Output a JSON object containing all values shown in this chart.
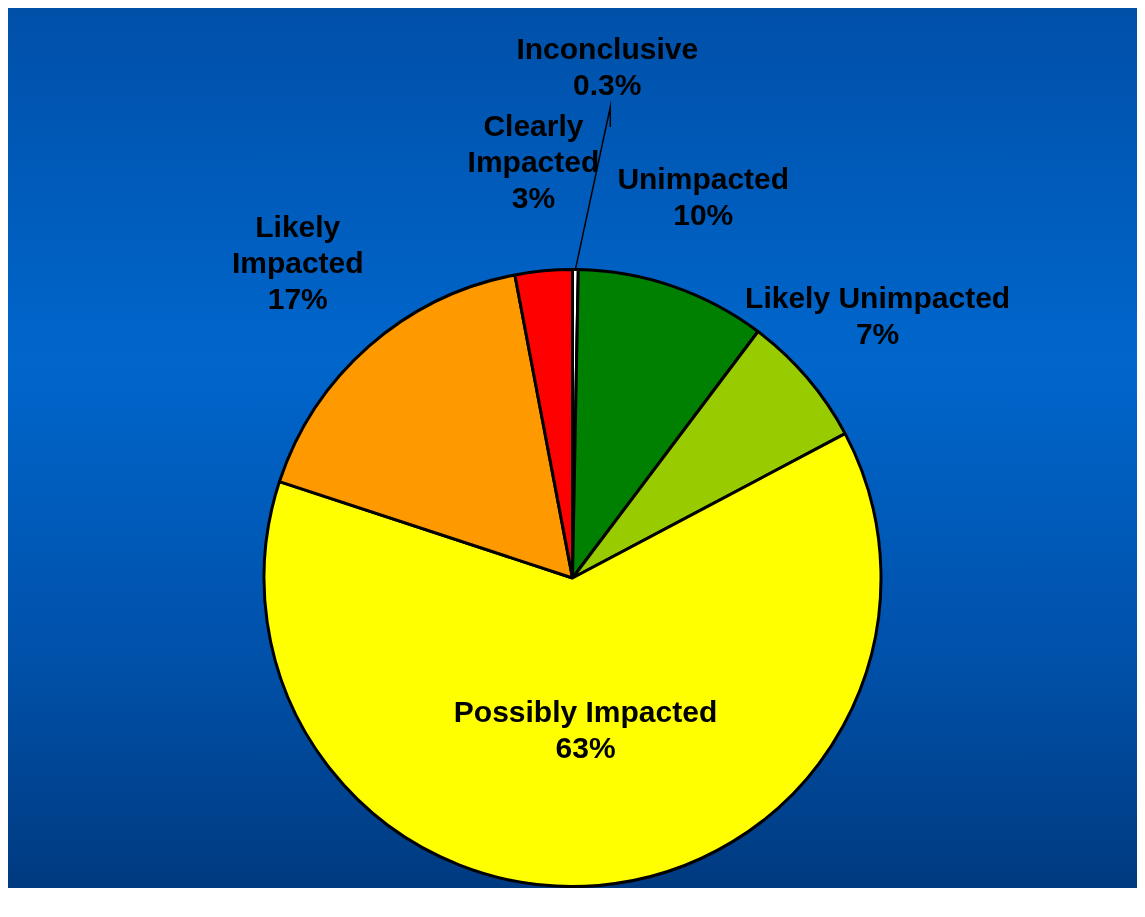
{
  "chart_data": {
    "type": "pie",
    "categories": [
      "Inconclusive",
      "Unimpacted",
      "Likely Unimpacted",
      "Possibly Impacted",
      "Likely Impacted",
      "Clearly Impacted"
    ],
    "values": [
      0.3,
      10,
      7,
      63,
      17,
      3
    ],
    "value_labels": [
      "0.3%",
      "10%",
      "7%",
      "63%",
      "17%",
      "3%"
    ],
    "colors": [
      "#ffffff",
      "#008000",
      "#99cc00",
      "#ffff00",
      "#ff9900",
      "#ff0000"
    ],
    "legend": false
  }
}
